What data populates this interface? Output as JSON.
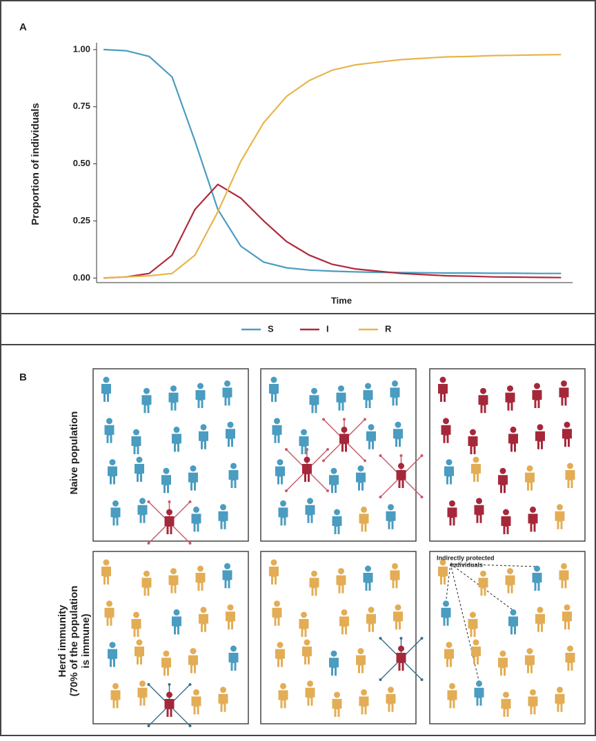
{
  "chart_data": {
    "type": "line",
    "label": "A",
    "xlabel": "Time",
    "ylabel": "Proportion of individuals",
    "x": [
      0,
      1,
      2,
      3,
      4,
      5,
      6,
      7,
      8,
      9,
      10,
      11,
      12,
      13,
      14,
      15,
      16,
      17,
      18,
      19,
      20
    ],
    "xlim": [
      -0.3,
      20.5
    ],
    "ylim": [
      -0.02,
      1.03
    ],
    "yticks": [
      {
        "value": 0,
        "label": "0.00"
      },
      {
        "value": 0.25,
        "label": "0.25"
      },
      {
        "value": 0.5,
        "label": "0.50"
      },
      {
        "value": 0.75,
        "label": "0.75"
      },
      {
        "value": 1,
        "label": "1.00"
      }
    ],
    "grid": false,
    "legend": "bottom",
    "series": [
      {
        "name": "S",
        "color": "#4a9cc0",
        "values": [
          1.0,
          0.995,
          0.97,
          0.88,
          0.6,
          0.3,
          0.14,
          0.07,
          0.045,
          0.035,
          0.03,
          0.027,
          0.025,
          0.024,
          0.023,
          0.022,
          0.022,
          0.021,
          0.021,
          0.02,
          0.02
        ]
      },
      {
        "name": "I",
        "color": "#b0283c",
        "values": [
          0.0,
          0.005,
          0.02,
          0.1,
          0.3,
          0.41,
          0.35,
          0.25,
          0.16,
          0.1,
          0.06,
          0.04,
          0.03,
          0.02,
          0.015,
          0.01,
          0.008,
          0.005,
          0.004,
          0.003,
          0.002
        ]
      },
      {
        "name": "R",
        "color": "#e8b44a",
        "values": [
          0.0,
          0.005,
          0.01,
          0.02,
          0.1,
          0.29,
          0.51,
          0.68,
          0.795,
          0.865,
          0.91,
          0.933,
          0.945,
          0.956,
          0.962,
          0.968,
          0.97,
          0.974,
          0.975,
          0.977,
          0.978
        ]
      }
    ]
  },
  "panel_b": {
    "label": "B",
    "row_labels": [
      [
        "Naive population"
      ],
      [
        "Herd immunity",
        "(70% of the population",
        "is immune)"
      ]
    ],
    "annotation": [
      "Indirectly protected",
      "individuals"
    ]
  }
}
